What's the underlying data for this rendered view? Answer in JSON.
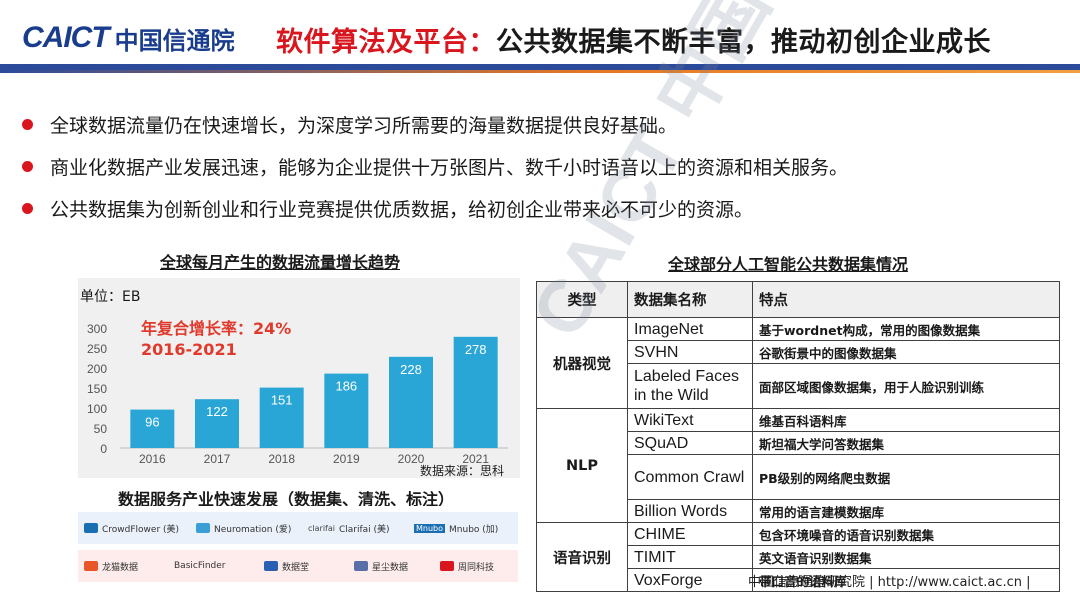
{
  "header": {
    "logo_en": "CAICT",
    "logo_cn": "中国信通院",
    "title_red": "软件算法及平台：",
    "title_dark": "公共数据集不断丰富，推动初创企业成长"
  },
  "bullets": [
    "全球数据流量仍在快速增长，为深度学习所需要的海量数据提供良好基础。",
    "商业化数据产业发展迅速，能够为企业提供十万张图片、数千小时语音以上的资源和相关服务。",
    "公共数据集为创新创业和行业竞赛提供优质数据，给初创企业带来必不可少的资源。"
  ],
  "left_chart": {
    "title": "全球每月产生的数据流量增长趋势",
    "unit": "单位：EB",
    "cagr_line1": "年复合增长率：24%",
    "cagr_line2": "2016-2021",
    "source": "数据来源：思科"
  },
  "chart_data": {
    "type": "bar",
    "title": "全球每月产生的数据流量增长趋势",
    "categories": [
      "2016",
      "2017",
      "2018",
      "2019",
      "2020",
      "2021"
    ],
    "values": [
      96,
      122,
      151,
      186,
      228,
      278
    ],
    "ylim": [
      0,
      300
    ],
    "yticks": [
      0,
      50,
      100,
      150,
      200,
      250,
      300
    ],
    "ylabel": "单位：EB",
    "grid": false,
    "bar_color": "#2aa6d6"
  },
  "services": {
    "title": "数据服务产业快速发展（数据集、清洗、标注）",
    "row1": [
      "CrowdFlower",
      "CrowdFlower (美)",
      "Neuromation (爱)",
      "clarifai",
      "Clarifai (美)",
      "Mnubo",
      "Mnubo (加)"
    ],
    "row2": [
      "龙猫数据",
      "BasicFinder",
      "数据堂",
      "星尘数据",
      "周同科技"
    ]
  },
  "table": {
    "title": "全球部分人工智能公共数据集情况",
    "headers": [
      "类型",
      "数据集名称",
      "特点"
    ],
    "groups": [
      {
        "category": "机器视觉",
        "rows": [
          {
            "name": "ImageNet",
            "feature": "基于wordnet构成，常用的图像数据集"
          },
          {
            "name": "SVHN",
            "feature": "谷歌街景中的图像数据集"
          },
          {
            "name": "Labeled  Faces in the Wild",
            "feature": "面部区域图像数据集，用于人脸识别训练"
          }
        ]
      },
      {
        "category": "NLP",
        "rows": [
          {
            "name": "WikiText",
            "feature": "维基百科语料库"
          },
          {
            "name": "SQuAD",
            "feature": "斯坦福大学问答数据集"
          },
          {
            "name": "Common Crawl",
            "feature": "PB级别的网络爬虫数据"
          },
          {
            "name": "Billion Words",
            "feature": "常用的语言建模数据库"
          }
        ]
      },
      {
        "category": "语音识别",
        "rows": [
          {
            "name": "CHIME",
            "feature": "包含环境噪音的语音识别数据集"
          },
          {
            "name": "TIMIT",
            "feature": "英文语音识别数据集"
          },
          {
            "name": "VoxForge",
            "feature": "带口音的语料库"
          }
        ]
      }
    ]
  },
  "footer": {
    "text": "中国信息通信研究院   |   http://www.caict.ac.cn   |"
  },
  "watermark": "CAICT 中国信通院",
  "colors": {
    "brand_blue": "#1a3c8c",
    "accent_red": "#d9161e",
    "bar_blue": "#2aa6d6"
  }
}
